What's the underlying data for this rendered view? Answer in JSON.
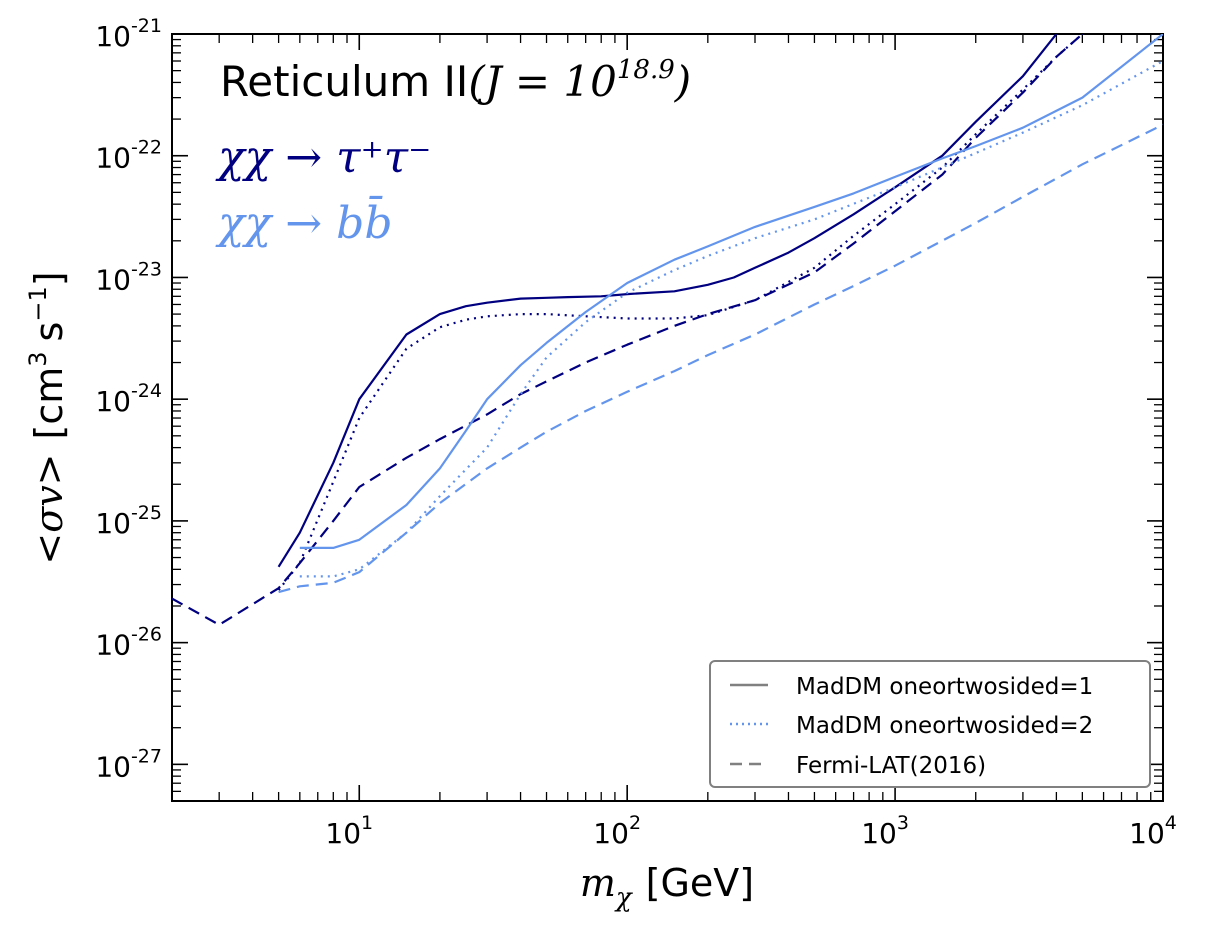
{
  "chart_data": {
    "type": "line",
    "xscale": "log",
    "yscale": "log",
    "xlim": [
      2,
      10000
    ],
    "ylim": [
      5e-28,
      1e-21
    ],
    "xlabel_math": "m",
    "xlabel_sub": "χ",
    "xlabel_unit": "[GeV]",
    "ylabel_math": "<σv>",
    "ylabel_unit": "[cm",
    "ylabel_sup1": "3",
    "ylabel_mid": "s",
    "ylabel_sup2": "−1",
    "ylabel_end": "]",
    "x_ticks": [
      {
        "base": "10",
        "exp": "1",
        "value": 10
      },
      {
        "base": "10",
        "exp": "2",
        "value": 100
      },
      {
        "base": "10",
        "exp": "3",
        "value": 1000
      },
      {
        "base": "10",
        "exp": "4",
        "value": 10000
      }
    ],
    "y_ticks": [
      {
        "base": "10",
        "exp": "-21",
        "value": 1e-21
      },
      {
        "base": "10",
        "exp": "-22",
        "value": 1e-22
      },
      {
        "base": "10",
        "exp": "-23",
        "value": 1e-23
      },
      {
        "base": "10",
        "exp": "-24",
        "value": 1e-24
      },
      {
        "base": "10",
        "exp": "-25",
        "value": 1e-25
      },
      {
        "base": "10",
        "exp": "-26",
        "value": 1e-26
      },
      {
        "base": "10",
        "exp": "-27",
        "value": 1e-27
      }
    ],
    "annotations": {
      "target": "Reticulum II",
      "jfactor_prefix": "(J = 10",
      "jfactor_exp": "18.9",
      "jfactor_suffix": ")",
      "channel_tau": "χχ → τ⁺τ⁻",
      "channel_b": "χχ → bb̄"
    },
    "legend": {
      "placement": "lower-right",
      "entries": [
        {
          "label": "MadDM oneortwosided=1",
          "style": "solid",
          "color": "#808080"
        },
        {
          "label": "MadDM oneortwosided=2",
          "style": "dotted",
          "color": "#6495ed"
        },
        {
          "label": "Fermi-LAT(2016)",
          "style": "dashed",
          "color": "#808080"
        }
      ]
    },
    "colors": {
      "tau": "#000080",
      "bb": "#6495ed"
    },
    "series": [
      {
        "channel": "tau",
        "style": "solid",
        "color": "#000080",
        "x": [
          5,
          6,
          8,
          10,
          15,
          20,
          25,
          30,
          40,
          50,
          60,
          80,
          100,
          150,
          200,
          250,
          300,
          400,
          500,
          700,
          1000,
          1500,
          2000,
          3000,
          4000
        ],
        "y": [
          4.2e-26,
          8e-26,
          3e-25,
          1e-24,
          3.4e-24,
          5e-24,
          5.8e-24,
          6.2e-24,
          6.7e-24,
          6.8e-24,
          6.9e-24,
          7e-24,
          7.3e-24,
          7.7e-24,
          8.7e-24,
          1e-23,
          1.2e-23,
          1.6e-23,
          2.1e-23,
          3.3e-23,
          5.5e-23,
          1e-22,
          1.9e-22,
          4.5e-22,
          1e-21
        ]
      },
      {
        "channel": "tau",
        "style": "dotted",
        "color": "#000080",
        "x": [
          5,
          6,
          8,
          10,
          15,
          20,
          25,
          30,
          40,
          50,
          70,
          100,
          150,
          200,
          300,
          500,
          700,
          1000,
          1500,
          2000,
          3000,
          4000,
          5000
        ],
        "y": [
          2.7e-26,
          4.5e-26,
          2.1e-25,
          7e-25,
          2.6e-24,
          3.9e-24,
          4.5e-24,
          4.8e-24,
          5e-24,
          5e-24,
          4.8e-24,
          4.6e-24,
          4.6e-24,
          4.9e-24,
          6.5e-24,
          1.2e-23,
          2.2e-23,
          4e-23,
          8e-23,
          1.5e-22,
          3.5e-22,
          6.5e-22,
          1e-21
        ]
      },
      {
        "channel": "tau",
        "style": "dashed",
        "color": "#000080",
        "x": [
          2,
          3,
          5,
          6,
          8,
          10,
          15,
          20,
          30,
          40,
          50,
          70,
          100,
          150,
          200,
          300,
          500,
          700,
          1000,
          1500,
          2000,
          3000,
          4000,
          5000
        ],
        "y": [
          2.3e-26,
          1.4e-26,
          2.8e-26,
          4.5e-26,
          1e-25,
          1.9e-25,
          3.3e-25,
          4.7e-25,
          7.5e-25,
          1.1e-24,
          1.4e-24,
          2e-24,
          2.8e-24,
          4e-24,
          5e-24,
          6.5e-24,
          1.1e-23,
          1.9e-23,
          3.5e-23,
          7e-23,
          1.4e-22,
          3.3e-22,
          6.5e-22,
          1e-21
        ]
      },
      {
        "channel": "bb",
        "style": "solid",
        "color": "#6495ed",
        "x": [
          6,
          8,
          10,
          15,
          20,
          25,
          30,
          40,
          50,
          70,
          100,
          150,
          200,
          300,
          500,
          700,
          1000,
          1500,
          2000,
          3000,
          5000,
          10000
        ],
        "y": [
          6e-26,
          6e-26,
          7e-26,
          1.35e-25,
          2.7e-25,
          5.5e-25,
          1e-24,
          1.9e-24,
          2.9e-24,
          5.2e-24,
          9e-24,
          1.4e-23,
          1.8e-23,
          2.6e-23,
          3.8e-23,
          4.9e-23,
          6.7e-23,
          9.5e-23,
          1.2e-22,
          1.7e-22,
          3e-22,
          1e-21
        ]
      },
      {
        "channel": "bb",
        "style": "dotted",
        "color": "#6495ed",
        "x": [
          6,
          8,
          10,
          15,
          20,
          30,
          40,
          50,
          70,
          100,
          150,
          200,
          300,
          500,
          1000,
          2000,
          3000,
          5000,
          10000
        ],
        "y": [
          3.5e-26,
          3.5e-26,
          4e-26,
          8e-26,
          1.6e-25,
          4e-25,
          1.1e-24,
          2.2e-24,
          4.3e-24,
          7.5e-24,
          1.15e-23,
          1.5e-23,
          2.1e-23,
          3e-23,
          5.5e-23,
          1.05e-22,
          1.55e-22,
          2.6e-22,
          6e-22
        ]
      },
      {
        "channel": "bb",
        "style": "dashed",
        "color": "#6495ed",
        "x": [
          5,
          6,
          8,
          10,
          15,
          20,
          30,
          40,
          50,
          70,
          100,
          150,
          200,
          300,
          500,
          700,
          1000,
          2000,
          3000,
          5000,
          10000
        ],
        "y": [
          2.6e-26,
          2.9e-26,
          3.1e-26,
          3.8e-26,
          8e-26,
          1.4e-25,
          2.7e-25,
          4e-25,
          5.4e-25,
          8e-25,
          1.15e-24,
          1.7e-24,
          2.3e-24,
          3.4e-24,
          6e-24,
          8.5e-24,
          1.25e-23,
          2.8e-23,
          4.6e-23,
          8.5e-23,
          1.8e-22
        ]
      }
    ]
  }
}
